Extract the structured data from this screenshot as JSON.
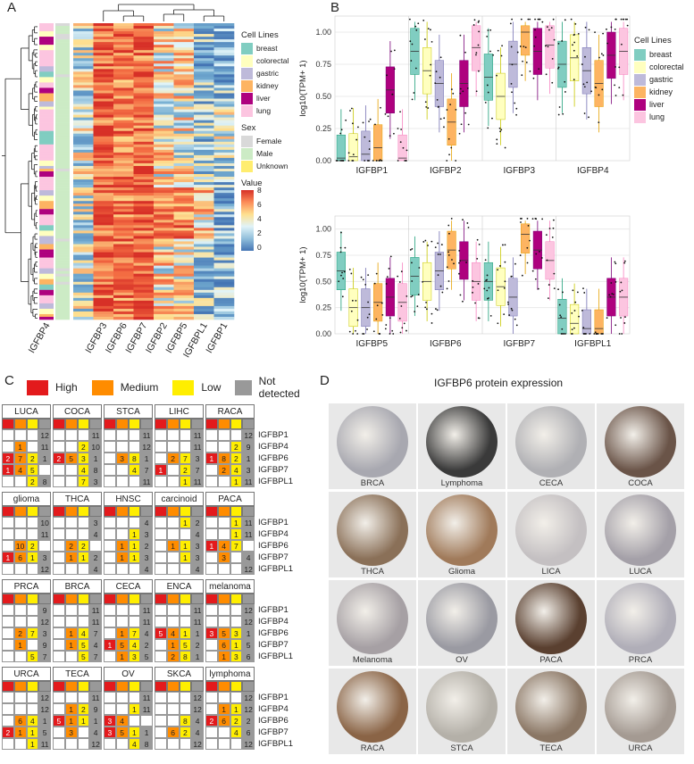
{
  "panels": {
    "a": "A",
    "b": "B",
    "c": "C",
    "d": "D"
  },
  "heatmap": {
    "columns": [
      "IGFBP4",
      "IGFBP3",
      "IGFBP6",
      "IGFBP7",
      "IGFBP2",
      "IGFBP5",
      "IGFBPL1",
      "IGFBP1"
    ],
    "legend_cell_title": "Cell Lines",
    "cell_lines": [
      {
        "name": "breast",
        "color": "#80cdc1"
      },
      {
        "name": "colorectal",
        "color": "#ffffbf"
      },
      {
        "name": "gastric",
        "color": "#bebada"
      },
      {
        "name": "kidney",
        "color": "#fdb462"
      },
      {
        "name": "liver",
        "color": "#ae017e"
      },
      {
        "name": "lung",
        "color": "#fcc5e0"
      }
    ],
    "legend_sex_title": "Sex",
    "sex": [
      {
        "name": "Female",
        "color": "#d9d9d9"
      },
      {
        "name": "Male",
        "color": "#ccebc5"
      },
      {
        "name": "Unknown",
        "color": "#ffed6f"
      }
    ],
    "legend_value_title": "Value",
    "value_ticks": [
      "8",
      "6",
      "4",
      "2",
      "0"
    ]
  },
  "chart_data": [
    {
      "type": "box",
      "panel": "B-top",
      "ylabel": "log10(TPM+ 1)",
      "ylim": [
        0,
        1.125
      ],
      "yticks": [
        "0.00",
        "0.25",
        "0.50",
        "0.75",
        "1.00"
      ],
      "categories": [
        "IGFBP1",
        "IGFBP2",
        "IGFBP3",
        "IGFBP4"
      ],
      "series_names": [
        "breast",
        "colorectal",
        "gastric",
        "kidney",
        "liver",
        "lung"
      ],
      "legend_title": "Cell Lines",
      "medians": [
        [
          0.02,
          0.03,
          0.05,
          0.1,
          0.55,
          0.02
        ],
        [
          0.85,
          0.7,
          0.6,
          0.3,
          0.6,
          0.88
        ],
        [
          0.65,
          0.5,
          0.75,
          1.0,
          0.85,
          0.9
        ],
        [
          0.75,
          0.8,
          0.7,
          0.6,
          0.82,
          0.85
        ]
      ]
    },
    {
      "type": "box",
      "panel": "B-bottom",
      "ylabel": "log10(TPM+ 1)",
      "ylim": [
        0,
        1.125
      ],
      "yticks": [
        "0.00",
        "0.25",
        "0.50",
        "0.75",
        "1.00"
      ],
      "categories": [
        "IGFBP5",
        "IGFBP6",
        "IGFBP7",
        "IGFBPL1"
      ],
      "series_names": [
        "breast",
        "colorectal",
        "gastric",
        "kidney",
        "liver",
        "lung"
      ],
      "medians": [
        [
          0.6,
          0.25,
          0.25,
          0.3,
          0.35,
          0.3
        ],
        [
          0.55,
          0.5,
          0.6,
          0.8,
          0.7,
          0.5
        ],
        [
          0.5,
          0.45,
          0.35,
          0.95,
          0.8,
          0.7
        ],
        [
          0.15,
          0.1,
          0.05,
          0.05,
          0.35,
          0.35
        ]
      ]
    }
  ],
  "panel_c": {
    "legend": [
      {
        "label": "High",
        "color": "#e31a1c"
      },
      {
        "label": "Medium",
        "color": "#ff8c00"
      },
      {
        "label": "Low",
        "color": "#ffee00"
      },
      {
        "label": "Not detected",
        "color": "#999999"
      }
    ],
    "genes": [
      "IGFBP1",
      "IGFBP4",
      "IGFBP6",
      "IGFBP7",
      "IGFBPL1"
    ],
    "rows": [
      [
        {
          "name": "LUCA",
          "data": [
            [
              0,
              0,
              0,
              12
            ],
            [
              0,
              1,
              0,
              11
            ],
            [
              2,
              7,
              2,
              1
            ],
            [
              1,
              4,
              5,
              0
            ],
            [
              0,
              0,
              2,
              8
            ]
          ]
        },
        {
          "name": "COCA",
          "data": [
            [
              0,
              0,
              0,
              11
            ],
            [
              0,
              0,
              2,
              10
            ],
            [
              2,
              5,
              3,
              1
            ],
            [
              0,
              0,
              4,
              8
            ],
            [
              0,
              0,
              7,
              3
            ]
          ]
        },
        {
          "name": "STCA",
          "data": [
            [
              0,
              0,
              0,
              11
            ],
            [
              0,
              0,
              0,
              12
            ],
            [
              0,
              3,
              8,
              1
            ],
            [
              0,
              0,
              4,
              7
            ],
            [
              0,
              0,
              0,
              11
            ]
          ]
        },
        {
          "name": "LIHC",
          "data": [
            [
              0,
              0,
              0,
              11
            ],
            [
              0,
              0,
              0,
              11
            ],
            [
              0,
              2,
              7,
              3
            ],
            [
              1,
              0,
              2,
              7
            ],
            [
              0,
              0,
              1,
              11
            ]
          ]
        },
        {
          "name": "RACA",
          "data": [
            [
              0,
              0,
              0,
              12
            ],
            [
              0,
              0,
              2,
              9
            ],
            [
              1,
              8,
              2,
              1
            ],
            [
              0,
              2,
              4,
              3
            ],
            [
              0,
              0,
              1,
              11
            ]
          ]
        }
      ],
      [
        {
          "name": "glioma",
          "data": [
            [
              0,
              0,
              0,
              10
            ],
            [
              0,
              0,
              0,
              11
            ],
            [
              0,
              10,
              2,
              0
            ],
            [
              1,
              6,
              1,
              3
            ],
            [
              0,
              0,
              0,
              12
            ]
          ]
        },
        {
          "name": "THCA",
          "data": [
            [
              0,
              0,
              0,
              3
            ],
            [
              0,
              0,
              0,
              4
            ],
            [
              0,
              2,
              2,
              0
            ],
            [
              0,
              1,
              1,
              2
            ],
            [
              0,
              0,
              0,
              4
            ]
          ]
        },
        {
          "name": "HNSC",
          "data": [
            [
              0,
              0,
              0,
              4
            ],
            [
              0,
              0,
              1,
              3
            ],
            [
              0,
              1,
              1,
              2
            ],
            [
              0,
              1,
              1,
              3
            ],
            [
              0,
              0,
              0,
              4
            ]
          ]
        },
        {
          "name": "carcinoid",
          "data": [
            [
              0,
              0,
              1,
              2
            ],
            [
              0,
              0,
              0,
              4
            ],
            [
              0,
              1,
              1,
              3
            ],
            [
              0,
              0,
              1,
              3
            ],
            [
              0,
              0,
              0,
              4
            ]
          ]
        },
        {
          "name": "PACA",
          "data": [
            [
              0,
              0,
              1,
              11
            ],
            [
              0,
              0,
              1,
              11
            ],
            [
              1,
              4,
              7,
              0
            ],
            [
              0,
              3,
              0,
              4
            ],
            [
              0,
              0,
              0,
              12
            ]
          ]
        }
      ],
      [
        {
          "name": "PRCA",
          "data": [
            [
              0,
              0,
              0,
              9
            ],
            [
              0,
              0,
              0,
              12
            ],
            [
              0,
              2,
              7,
              3
            ],
            [
              0,
              1,
              0,
              9
            ],
            [
              0,
              0,
              5,
              7
            ]
          ]
        },
        {
          "name": "BRCA",
          "data": [
            [
              0,
              0,
              0,
              11
            ],
            [
              0,
              0,
              0,
              11
            ],
            [
              0,
              1,
              4,
              7
            ],
            [
              0,
              1,
              5,
              4
            ],
            [
              0,
              0,
              5,
              7
            ]
          ]
        },
        {
          "name": "CECA",
          "data": [
            [
              0,
              0,
              0,
              11
            ],
            [
              0,
              0,
              0,
              11
            ],
            [
              0,
              1,
              7,
              4
            ],
            [
              1,
              5,
              4,
              2
            ],
            [
              0,
              1,
              3,
              5
            ]
          ]
        },
        {
          "name": "ENCA",
          "data": [
            [
              0,
              0,
              0,
              11
            ],
            [
              0,
              0,
              0,
              11
            ],
            [
              5,
              4,
              1,
              1
            ],
            [
              0,
              1,
              5,
              2
            ],
            [
              0,
              2,
              8,
              1
            ]
          ]
        },
        {
          "name": "melanoma",
          "data": [
            [
              0,
              0,
              0,
              12
            ],
            [
              0,
              0,
              0,
              12
            ],
            [
              3,
              5,
              3,
              1
            ],
            [
              0,
              6,
              1,
              5
            ],
            [
              0,
              1,
              3,
              6
            ]
          ]
        }
      ],
      [
        {
          "name": "URCA",
          "data": [
            [
              0,
              0,
              0,
              12
            ],
            [
              0,
              0,
              0,
              12
            ],
            [
              0,
              6,
              4,
              1
            ],
            [
              2,
              1,
              1,
              5
            ],
            [
              0,
              0,
              1,
              11
            ]
          ]
        },
        {
          "name": "TECA",
          "data": [
            [
              0,
              0,
              0,
              11
            ],
            [
              0,
              1,
              2,
              9
            ],
            [
              5,
              1,
              1,
              1
            ],
            [
              0,
              3,
              0,
              4
            ],
            [
              0,
              0,
              0,
              12
            ]
          ]
        },
        {
          "name": "OV",
          "data": [
            [
              0,
              0,
              0,
              11
            ],
            [
              0,
              0,
              1,
              11
            ],
            [
              3,
              4,
              0,
              0
            ],
            [
              3,
              5,
              1,
              1
            ],
            [
              0,
              0,
              4,
              8
            ]
          ]
        },
        {
          "name": "SKCA",
          "data": [
            [
              0,
              0,
              0,
              12
            ],
            [
              0,
              0,
              0,
              12
            ],
            [
              0,
              0,
              8,
              4
            ],
            [
              0,
              6,
              2,
              4
            ],
            [
              0,
              0,
              0,
              12
            ]
          ]
        },
        {
          "name": "lymphoma",
          "data": [
            [
              0,
              0,
              0,
              12
            ],
            [
              0,
              1,
              1,
              12
            ],
            [
              2,
              6,
              2,
              2
            ],
            [
              0,
              0,
              4,
              6
            ],
            [
              0,
              0,
              0,
              12
            ]
          ]
        }
      ]
    ]
  },
  "panel_d": {
    "title": "IGFBP6 protein expression",
    "cores": [
      {
        "label": "BRCA",
        "stain": "#a8a8b0"
      },
      {
        "label": "Lymphoma",
        "stain": "#3a3a3a"
      },
      {
        "label": "CECA",
        "stain": "#b0b0b4"
      },
      {
        "label": "COCA",
        "stain": "#6a5448"
      },
      {
        "label": "THCA",
        "stain": "#8a7058"
      },
      {
        "label": "Glioma",
        "stain": "#a07a5a"
      },
      {
        "label": "LICA",
        "stain": "#c4c0c2"
      },
      {
        "label": "LUCA",
        "stain": "#a4a0a8"
      },
      {
        "label": "Melanoma",
        "stain": "#a6a0a4"
      },
      {
        "label": "OV",
        "stain": "#9a9aa2"
      },
      {
        "label": "PACA",
        "stain": "#5a4030"
      },
      {
        "label": "PRCA",
        "stain": "#b0aeb8"
      },
      {
        "label": "RACA",
        "stain": "#8a6446"
      },
      {
        "label": "STCA",
        "stain": "#b4b0a8"
      },
      {
        "label": "TECA",
        "stain": "#8a7664"
      },
      {
        "label": "URCA",
        "stain": "#a49a92"
      }
    ]
  }
}
